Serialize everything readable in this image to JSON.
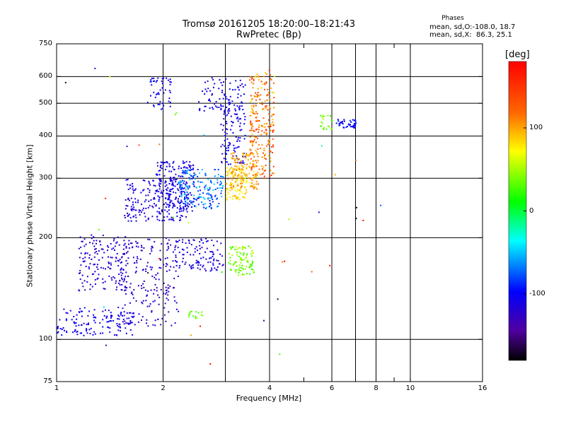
{
  "title": "Tromsø 20161205 18:20:00–18:21:43",
  "subtitle": "RwPretec (Bp)",
  "stats": {
    "heading": "Phases",
    "o_mode": "mean, sd,O:-108.0, 18.7",
    "x_mode": "mean, sd,X:  86.3, 25.1"
  },
  "colorbar": {
    "label": "[deg]",
    "ticks": [
      {
        "value": 100,
        "label": "100"
      },
      {
        "value": 0,
        "label": "0"
      },
      {
        "value": -100,
        "label": "-100"
      }
    ],
    "range": [
      -180,
      180
    ]
  },
  "chart_data": {
    "type": "scatter",
    "title": "Tromsø 20161205 18:20:00–18:21:43",
    "subtitle": "RwPretec (Bp)",
    "xlabel": "Frequency [MHz]",
    "ylabel": "Stationary phase Virtual Height [km]",
    "xscale": "log",
    "yscale": "log",
    "xlim": [
      1,
      16
    ],
    "ylim": [
      75,
      750
    ],
    "xticks": [
      {
        "value": 1,
        "label": "1"
      },
      {
        "value": 2,
        "label": "2"
      },
      {
        "value": 4,
        "label": "4"
      },
      {
        "value": 6,
        "label": "6"
      },
      {
        "value": 8,
        "label": "8"
      },
      {
        "value": 10,
        "label": "10"
      },
      {
        "value": 16,
        "label": "16"
      }
    ],
    "xgrid": [
      2,
      3,
      4,
      6,
      7,
      8,
      10
    ],
    "yticks": [
      {
        "value": 75,
        "label": "75"
      },
      {
        "value": 100,
        "label": "100"
      },
      {
        "value": 200,
        "label": "200"
      },
      {
        "value": 300,
        "label": "300"
      },
      {
        "value": 400,
        "label": "400"
      },
      {
        "value": 500,
        "label": "500"
      },
      {
        "value": 600,
        "label": "600"
      },
      {
        "value": 750,
        "label": "750"
      }
    ],
    "ygrid": [
      100,
      200,
      300,
      400,
      500,
      600
    ],
    "grid": true,
    "color_variable": "phase [deg]",
    "clusters": [
      {
        "f": [
          1.0,
          1.65
        ],
        "h": [
          103,
          125
        ],
        "phase": [
          -120,
          -95
        ],
        "n": 140
      },
      {
        "f": [
          1.15,
          1.6
        ],
        "h": [
          140,
          205
        ],
        "phase": [
          -130,
          -105
        ],
        "n": 160
      },
      {
        "f": [
          1.5,
          2.2
        ],
        "h": [
          110,
          200
        ],
        "phase": [
          -135,
          -110
        ],
        "n": 200
      },
      {
        "f": [
          1.55,
          2.35
        ],
        "h": [
          225,
          300
        ],
        "phase": [
          -125,
          -100
        ],
        "n": 220
      },
      {
        "f": [
          1.9,
          2.45
        ],
        "h": [
          240,
          340
        ],
        "phase": [
          -120,
          -100
        ],
        "n": 170
      },
      {
        "f": [
          1.8,
          2.1
        ],
        "h": [
          480,
          600
        ],
        "phase": [
          -115,
          -95
        ],
        "n": 50
      },
      {
        "f": [
          2.15,
          2.95
        ],
        "h": [
          160,
          200
        ],
        "phase": [
          -125,
          -100
        ],
        "n": 110
      },
      {
        "f": [
          2.2,
          2.95
        ],
        "h": [
          245,
          320
        ],
        "phase": [
          -95,
          -45
        ],
        "n": 160
      },
      {
        "f": [
          2.5,
          3.1
        ],
        "h": [
          470,
          600
        ],
        "phase": [
          -115,
          -100
        ],
        "n": 50
      },
      {
        "f": [
          2.9,
          3.4
        ],
        "h": [
          330,
          590
        ],
        "phase": [
          -120,
          -95
        ],
        "n": 140
      },
      {
        "f": [
          3.0,
          3.45
        ],
        "h": [
          260,
          325
        ],
        "phase": [
          60,
          110
        ],
        "n": 110
      },
      {
        "f": [
          3.1,
          3.7
        ],
        "h": [
          280,
          360
        ],
        "phase": [
          75,
          120
        ],
        "n": 120
      },
      {
        "f": [
          3.5,
          4.1
        ],
        "h": [
          300,
          620
        ],
        "phase": [
          85,
          150
        ],
        "n": 240
      },
      {
        "f": [
          3.05,
          3.6
        ],
        "h": [
          155,
          190
        ],
        "phase": [
          15,
          60
        ],
        "n": 100
      },
      {
        "f": [
          2.35,
          2.6
        ],
        "h": [
          116,
          122
        ],
        "phase": [
          20,
          50
        ],
        "n": 15
      },
      {
        "f": [
          5.55,
          6.0
        ],
        "h": [
          420,
          465
        ],
        "phase": [
          20,
          50
        ],
        "n": 22
      },
      {
        "f": [
          6.1,
          7.0
        ],
        "h": [
          425,
          450
        ],
        "phase": [
          -110,
          -85
        ],
        "n": 45
      },
      {
        "f": [
          1.0,
          8.5
        ],
        "h": [
          80,
          700
        ],
        "phase": [
          -180,
          180
        ],
        "n": 45
      }
    ]
  }
}
